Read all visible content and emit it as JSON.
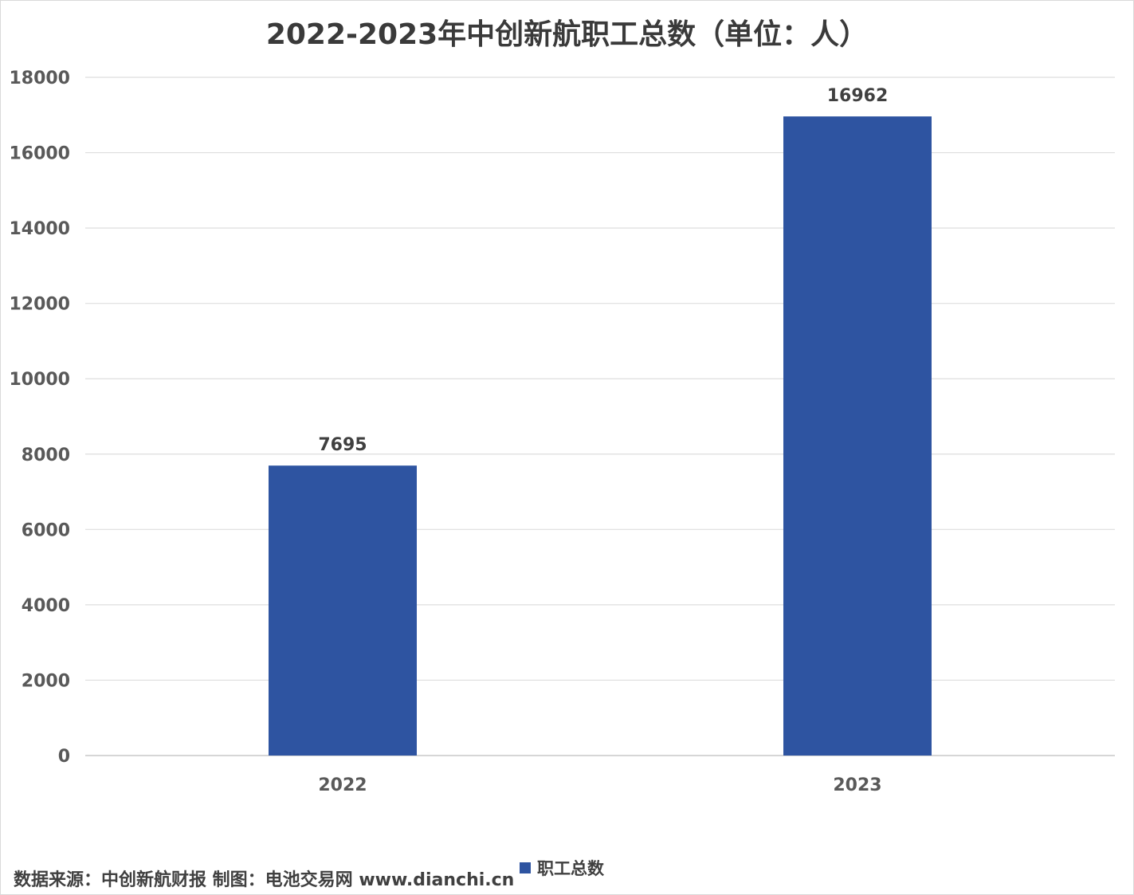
{
  "chart_data": {
    "type": "bar",
    "title": "2022-2023年中创新航职工总数（单位：人）",
    "categories": [
      "2022",
      "2023"
    ],
    "series": [
      {
        "name": "职工总数",
        "values": [
          7695,
          16962
        ],
        "data_labels": [
          "7695",
          "16962"
        ]
      }
    ],
    "ylim": [
      0,
      18000
    ],
    "yticks": [
      "0",
      "2000",
      "4000",
      "6000",
      "8000",
      "10000",
      "12000",
      "14000",
      "16000",
      "18000"
    ],
    "grid": true,
    "legend_position": "bottom",
    "bar_color": "#2e54a1"
  },
  "footer": {
    "source": "数据来源：中创新航财报  制图：电池交易网 www.dianchi.cn"
  }
}
